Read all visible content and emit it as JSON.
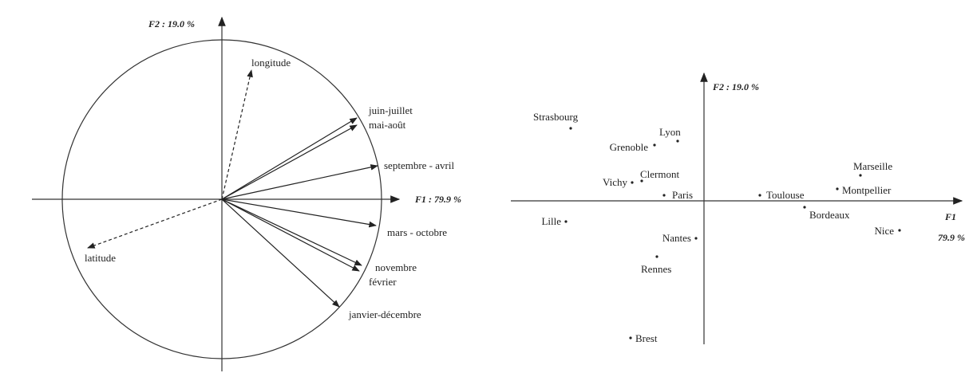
{
  "chart_data": [
    {
      "type": "vector",
      "x_label": "F1 : 79.9 %",
      "y_label": "F2 : 19.0 %",
      "xlim": [
        -1,
        1
      ],
      "ylim": [
        -1,
        1
      ],
      "points": [
        {
          "label": "juin-juillet",
          "x": 0.845,
          "y": 0.51,
          "dashed": false
        },
        {
          "label": "mai-août",
          "x": 0.845,
          "y": 0.465,
          "dashed": false
        },
        {
          "label": "septembre - avril",
          "x": 0.975,
          "y": 0.21,
          "dashed": false
        },
        {
          "label": "mars - octobre",
          "x": 0.965,
          "y": -0.165,
          "dashed": false
        },
        {
          "label": "novembre",
          "x": 0.875,
          "y": -0.415,
          "dashed": false
        },
        {
          "label": "février",
          "x": 0.86,
          "y": -0.45,
          "dashed": false
        },
        {
          "label": "janvier-décembre",
          "x": 0.735,
          "y": -0.675,
          "dashed": false
        },
        {
          "label": "longitude",
          "x": 0.185,
          "y": 0.81,
          "dashed": true
        },
        {
          "label": "latitude",
          "x": -0.84,
          "y": -0.305,
          "dashed": true
        }
      ]
    },
    {
      "type": "scatter",
      "x_label": [
        "F1",
        "79.9 %"
      ],
      "y_label": "F2 : 19.0 %",
      "xlim": [
        -2.42,
        3.23
      ],
      "ylim": [
        -1.8,
        1.57
      ],
      "points": [
        {
          "label": "Strasbourg",
          "x": -1.67,
          "y": 0.91
        },
        {
          "label": "Lyon",
          "x": -0.33,
          "y": 0.75
        },
        {
          "label": "Grenoble",
          "x": -0.62,
          "y": 0.7
        },
        {
          "label": "Vichy",
          "x": -0.9,
          "y": 0.23
        },
        {
          "label": "Clermont",
          "x": -0.78,
          "y": 0.25
        },
        {
          "label": "Paris",
          "x": -0.5,
          "y": 0.07
        },
        {
          "label": "Toulouse",
          "x": 0.7,
          "y": 0.07
        },
        {
          "label": "Montpellier",
          "x": 1.67,
          "y": 0.15
        },
        {
          "label": "Marseille",
          "x": 1.96,
          "y": 0.32
        },
        {
          "label": "Bordeaux",
          "x": 1.26,
          "y": -0.08
        },
        {
          "label": "Nice",
          "x": 2.45,
          "y": -0.37
        },
        {
          "label": "Lille",
          "x": -1.73,
          "y": -0.26
        },
        {
          "label": "Nantes",
          "x": -0.1,
          "y": -0.47
        },
        {
          "label": "Rennes",
          "x": -0.59,
          "y": -0.7
        },
        {
          "label": "Brest",
          "x": -0.92,
          "y": -1.72
        }
      ]
    }
  ]
}
